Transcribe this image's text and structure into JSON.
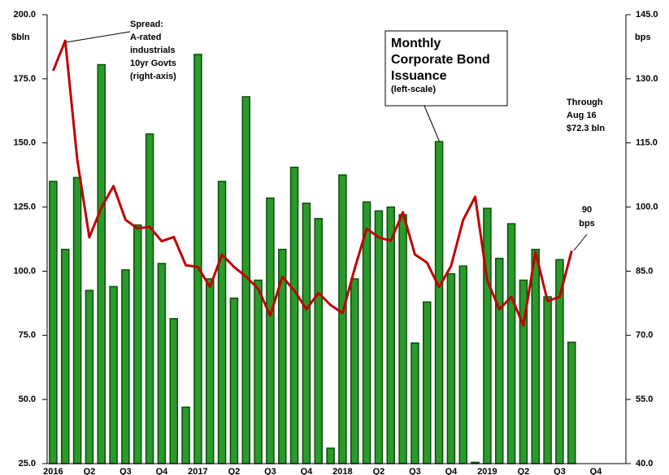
{
  "chart_data": {
    "type": "bar",
    "y_label": "$bln",
    "y2_label": "bps",
    "categories": [
      "2016",
      null,
      null,
      "Q2",
      null,
      null,
      "Q3",
      null,
      null,
      "Q4",
      null,
      null,
      "2017",
      null,
      null,
      "Q2",
      null,
      null,
      "Q3",
      null,
      null,
      "Q4",
      null,
      null,
      "2018",
      null,
      null,
      "Q2",
      null,
      null,
      "Q3",
      null,
      null,
      "Q4",
      null,
      null,
      "2019",
      null,
      null,
      "Q2",
      null,
      null,
      "Q3",
      null,
      null,
      "Q4",
      null,
      null
    ],
    "series": [
      {
        "name": "Monthly Corporate Bond Issuance",
        "type": "bar",
        "color": "#2a9a2a",
        "axis": "y",
        "values": [
          135,
          108.5,
          136.5,
          92.5,
          180.5,
          94,
          100.5,
          118,
          153.5,
          103,
          81.5,
          47,
          184.5,
          97,
          135,
          89.5,
          168,
          96.5,
          128.5,
          108.5,
          140.5,
          126.5,
          120.5,
          31,
          137.5,
          97,
          127,
          123.5,
          125,
          122,
          72,
          88,
          150.5,
          99,
          102,
          25.5,
          124.5,
          105,
          118.5,
          96.5,
          108.5,
          90,
          104.5,
          72.3,
          null,
          null,
          null,
          null
        ]
      },
      {
        "name": "Spread",
        "type": "line",
        "color": "#c00000",
        "axis": "y2",
        "values": [
          131.9,
          138.9,
          111,
          92.9,
          99.9,
          104.9,
          97,
          95,
          95.4,
          92,
          93,
          86.4,
          86,
          81.3,
          88.9,
          86,
          83.7,
          80.9,
          74.6,
          83.7,
          80.5,
          76.1,
          79.9,
          77.1,
          75.2,
          85.6,
          95,
          92.9,
          92.1,
          98.8,
          88.9,
          87,
          81.3,
          86.2,
          97,
          102.4,
          82.8,
          76.1,
          79,
          72.3,
          89.5,
          78,
          79,
          89.8,
          null,
          null,
          null,
          null
        ]
      }
    ],
    "ylim": [
      25,
      200
    ],
    "yticks": [
      {
        "value": 25,
        "label": "25.0"
      },
      {
        "value": 50,
        "label": "50.0"
      },
      {
        "value": 75,
        "label": "75.0"
      },
      {
        "value": 100,
        "label": "100.0"
      },
      {
        "value": 125,
        "label": "125.0"
      },
      {
        "value": 150,
        "label": "150.0"
      },
      {
        "value": 175,
        "label": "175.0"
      },
      {
        "value": 200,
        "label": "200.0"
      }
    ],
    "y2lim": [
      40,
      145
    ],
    "y2ticks": [
      {
        "value": 40,
        "label": "40.0"
      },
      {
        "value": 55,
        "label": "55.0"
      },
      {
        "value": 70,
        "label": "70.0"
      },
      {
        "value": 85,
        "label": "85.0"
      },
      {
        "value": 100,
        "label": "100.0"
      },
      {
        "value": 115,
        "label": "115.0"
      },
      {
        "value": 130,
        "label": "130.0"
      },
      {
        "value": 145,
        "label": "145.0"
      }
    ],
    "annotations": [
      {
        "lines": [
          "Spread:",
          "A-rated",
          "industrials",
          "10yr Govts",
          "(right-axis)"
        ]
      },
      {
        "lines": [
          "Monthly",
          "Corporate Bond",
          "Issuance"
        ],
        "note": "(left-scale)"
      },
      {
        "lines": [
          "Through",
          "Aug 16",
          "$72.3 bln"
        ]
      },
      {
        "lines": [
          "90",
          "bps"
        ]
      }
    ]
  }
}
